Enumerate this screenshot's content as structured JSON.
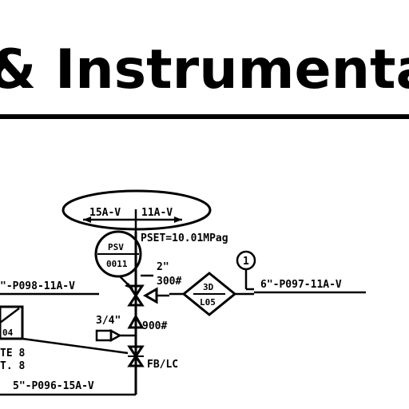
{
  "title": "& Instrumentation",
  "labels": {
    "psv_top": "PSV",
    "psv_num": "0011",
    "size_15a": "15A-V",
    "size_11a": "11A-V",
    "pset": "PSET=10.01MPag",
    "line_left": "\"-P098-11A-V",
    "size_2in": "2\"",
    "rating_300": "300#",
    "dp_top": "3D",
    "dp_bottom": "L05",
    "instr_1": "1",
    "line_right": "6\"-P097-11A-V",
    "size_34": "3/4\"",
    "rating_900": "900#",
    "box_num": "04",
    "note_te": "TE 8",
    "note_t": "T. 8",
    "fb_lc": "FB/LC",
    "line_bottom": "5\"-P096-15A-V"
  }
}
